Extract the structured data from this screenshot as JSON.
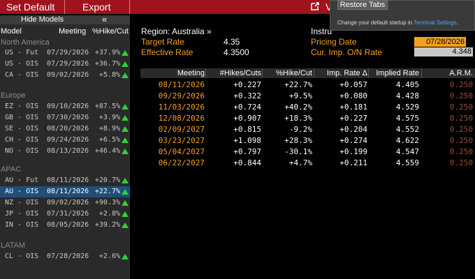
{
  "toolbar": {
    "set_default_label": "Set Default",
    "export_label": "Export",
    "partial_label": "V"
  },
  "popup": {
    "restore_tabs_label": "Restore Tabs",
    "message_prefix": "Change your default startup in ",
    "message_link": "Terminal Settings",
    "message_suffix": "."
  },
  "sidebar": {
    "hide_models_label": "Hide Models",
    "collapse_glyph": "«",
    "headers": {
      "model": "Model",
      "meeting": "Meeting",
      "hike": "%Hike/Cut"
    },
    "regions": [
      {
        "name": "North America",
        "rows": [
          {
            "model": "US - Fut",
            "date": "07/29/2026",
            "hike": "+37.9%"
          },
          {
            "model": "US - OIS",
            "date": "07/29/2026",
            "hike": "+36.7%"
          },
          {
            "model": "CA - OIS",
            "date": "09/02/2026",
            "hike": "+5.8%"
          }
        ]
      },
      {
        "name": "Europe",
        "rows": [
          {
            "model": "EZ - OIS",
            "date": "09/10/2026",
            "hike": "+87.5%"
          },
          {
            "model": "GB - OIS",
            "date": "07/30/2026",
            "hike": "+3.9%"
          },
          {
            "model": "SE - OIS",
            "date": "08/20/2026",
            "hike": "+8.9%"
          },
          {
            "model": "CH - OIS",
            "date": "09/24/2026",
            "hike": "+6.5%"
          },
          {
            "model": "NO - OIS",
            "date": "08/13/2026",
            "hike": "+46.4%"
          }
        ]
      },
      {
        "name": "APAC",
        "rows": [
          {
            "model": "AU - Fut",
            "date": "08/11/2026",
            "hike": "+20.7%"
          },
          {
            "model": "AU - OIS",
            "date": "08/11/2026",
            "hike": "+22.7%",
            "selected": true
          },
          {
            "model": "NZ - OIS",
            "date": "09/02/2026",
            "hike": "+90.3%"
          },
          {
            "model": "JP - OIS",
            "date": "07/31/2026",
            "hike": "+2.8%"
          },
          {
            "model": "IN - OIS",
            "date": "08/05/2026",
            "hike": "+39.2%"
          }
        ]
      },
      {
        "name": "LATAM",
        "rows": [
          {
            "model": "CL - OIS",
            "date": "07/28/2026",
            "hike": "+2.6%"
          }
        ]
      }
    ]
  },
  "summary": {
    "region_label": "Region: Australia »",
    "target_rate_label": "Target Rate",
    "target_rate_value": "4.35",
    "effective_rate_label": "Effective Rate",
    "effective_rate_value": "4.3500",
    "instrument_label": "Instru",
    "pricing_date_label": "Pricing Date",
    "pricing_date_value": "07/28/2026",
    "cur_imp_label": "Cur. Imp. O/N Rate",
    "cur_imp_value": "4.348"
  },
  "table": {
    "headers": [
      "Meeting",
      "#Hikes/Cuts",
      "%Hike/Cut",
      "Imp. Rate Δ",
      "Implied Rate",
      "A.R.M."
    ],
    "rows": [
      [
        "08/11/2026",
        "+0.227",
        "+22.7%",
        "+0.057",
        "4.405",
        "0.250"
      ],
      [
        "09/29/2026",
        "+0.322",
        "+9.5%",
        "+0.080",
        "4.428",
        "0.250"
      ],
      [
        "11/03/2026",
        "+0.724",
        "+40.2%",
        "+0.181",
        "4.529",
        "0.250"
      ],
      [
        "12/08/2026",
        "+0.907",
        "+18.3%",
        "+0.227",
        "4.575",
        "0.250"
      ],
      [
        "02/09/2027",
        "+0.815",
        "-9.2%",
        "+0.204",
        "4.552",
        "0.250"
      ],
      [
        "03/23/2027",
        "+1.098",
        "+28.3%",
        "+0.274",
        "4.622",
        "0.250"
      ],
      [
        "05/04/2027",
        "+0.797",
        "-30.1%",
        "+0.199",
        "4.547",
        "0.250"
      ],
      [
        "06/22/2027",
        "+0.844",
        "+4.7%",
        "+0.211",
        "4.559",
        "0.250"
      ]
    ]
  },
  "colors": {
    "toolbar_bg": "#a0121c",
    "accent_orange": "#f5a020",
    "up_green": "#2bd43a",
    "selected_row": "#1f4e7a"
  }
}
